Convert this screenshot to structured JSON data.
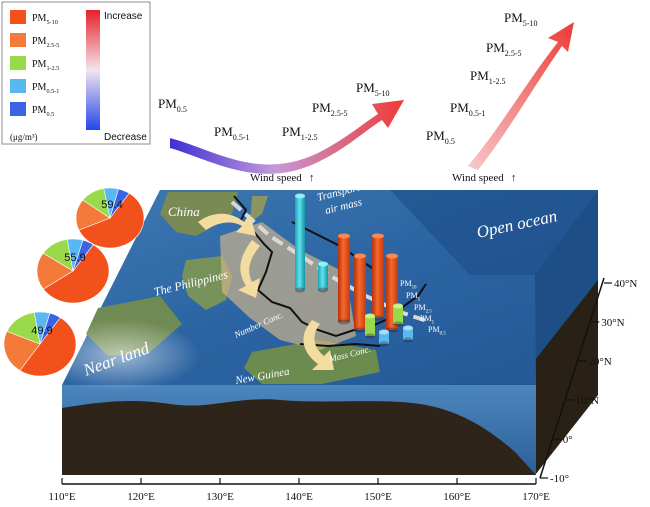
{
  "legend": {
    "items": [
      {
        "label": "PM",
        "sub": "5-10",
        "color": "#f2511b"
      },
      {
        "label": "PM",
        "sub": "2.5-5",
        "color": "#f47a3a"
      },
      {
        "label": "PM",
        "sub": "1-2.5",
        "color": "#9ad94a"
      },
      {
        "label": "PM",
        "sub": "0.5-1",
        "color": "#59b8f0"
      },
      {
        "label": "PM",
        "sub": "0.5",
        "color": "#3b63e6"
      }
    ],
    "unit": "(μg/m³)",
    "scale_top": "Increase",
    "scale_bottom": "Decrease"
  },
  "left_arrow_labels": [
    {
      "label": "PM",
      "sub": "0.5"
    },
    {
      "label": "PM",
      "sub": "0.5-1"
    },
    {
      "label": "PM",
      "sub": "1-2.5"
    },
    {
      "label": "PM",
      "sub": "2.5-5"
    },
    {
      "label": "PM",
      "sub": "5-10"
    }
  ],
  "right_arrow_labels": [
    {
      "label": "PM",
      "sub": "0.5"
    },
    {
      "label": "PM",
      "sub": "0.5-1"
    },
    {
      "label": "PM",
      "sub": "1-2.5"
    },
    {
      "label": "PM",
      "sub": "2.5-5"
    },
    {
      "label": "PM",
      "sub": "5-10"
    }
  ],
  "wind_speed_left": "Wind speed",
  "wind_speed_right": "Wind speed",
  "map_labels": {
    "china": "China",
    "philippines": "The Philippines",
    "new_guinea": "New Guinea",
    "near_land": "Near land",
    "open_ocean": "Open ocean",
    "transport": "Transport",
    "air_mass": "air mass",
    "number_conc": "Number Conc.",
    "mass_conc": "Mass Conc."
  },
  "bar_labels": [
    {
      "label": "PM",
      "sub": "10"
    },
    {
      "label": "PM",
      "sub": "5"
    },
    {
      "label": "PM",
      "sub": "2.5"
    },
    {
      "label": "PM",
      "sub": "1"
    },
    {
      "label": "PM",
      "sub": "0.5"
    }
  ],
  "pies": [
    {
      "value_label": "59.4",
      "slices": [
        0.594,
        0.17,
        0.12,
        0.07,
        0.056
      ]
    },
    {
      "value_label": "55.9",
      "slices": [
        0.559,
        0.19,
        0.13,
        0.07,
        0.051
      ]
    },
    {
      "value_label": "49.9",
      "slices": [
        0.499,
        0.22,
        0.16,
        0.07,
        0.051
      ]
    }
  ],
  "lon_ticks": [
    "110°E",
    "120°E",
    "130°E",
    "140°E",
    "150°E",
    "160°E",
    "170°E"
  ],
  "lat_ticks": [
    "40°N",
    "30°N",
    "20°N",
    "10°N",
    "0°",
    "-10°"
  ],
  "colors": {
    "ocean_top": "#2e6aa8",
    "ocean_side": "#3a74ad",
    "land": "#c9a97a",
    "seabed": "#2e2419"
  }
}
